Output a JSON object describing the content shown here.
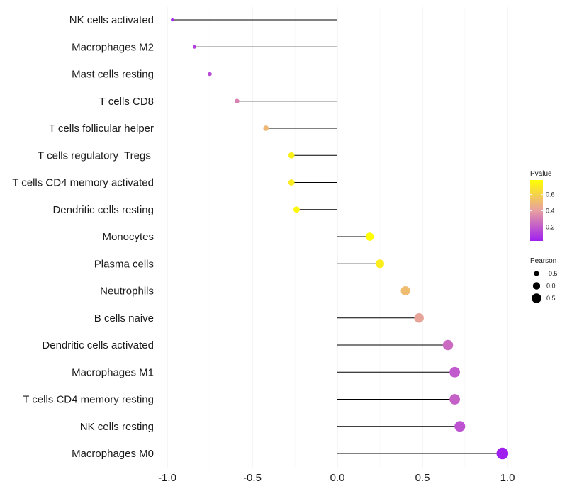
{
  "chart_data": {
    "type": "lollipop",
    "title": "",
    "xlabel": "",
    "ylabel": "",
    "xlim": [
      -1.0,
      1.0
    ],
    "x_ticks": [
      -1.0,
      -0.5,
      0.0,
      0.5,
      1.0
    ],
    "x_tick_labels": [
      "-1.0",
      "-0.5",
      "0.0",
      "0.5",
      "1.0"
    ],
    "x_minor_ticks": [
      -0.75,
      -0.25,
      0.25,
      0.75
    ],
    "points": [
      {
        "label": "NK cells activated",
        "pearson": -0.97,
        "pvalue": 0.05
      },
      {
        "label": "Macrophages M2",
        "pearson": -0.84,
        "pvalue": 0.12
      },
      {
        "label": "Mast cells resting",
        "pearson": -0.75,
        "pvalue": 0.15
      },
      {
        "label": "T cells CD8",
        "pearson": -0.59,
        "pvalue": 0.32
      },
      {
        "label": "T cells follicular helper",
        "pearson": -0.42,
        "pvalue": 0.5
      },
      {
        "label": "T cells regulatory  Tregs ",
        "pearson": -0.27,
        "pvalue": 0.72
      },
      {
        "label": "T cells CD4 memory activated",
        "pearson": -0.27,
        "pvalue": 0.7
      },
      {
        "label": "Dendritic cells resting",
        "pearson": -0.24,
        "pvalue": 0.75
      },
      {
        "label": "Monocytes",
        "pearson": 0.19,
        "pvalue": 0.78
      },
      {
        "label": "Plasma cells",
        "pearson": 0.25,
        "pvalue": 0.71
      },
      {
        "label": "Neutrophils",
        "pearson": 0.4,
        "pvalue": 0.52
      },
      {
        "label": "B cells naive",
        "pearson": 0.48,
        "pvalue": 0.42
      },
      {
        "label": "Dendritic cells activated",
        "pearson": 0.65,
        "pvalue": 0.25
      },
      {
        "label": "Macrophages M1",
        "pearson": 0.69,
        "pvalue": 0.2
      },
      {
        "label": "T cells CD4 memory resting",
        "pearson": 0.69,
        "pvalue": 0.22
      },
      {
        "label": "NK cells resting",
        "pearson": 0.72,
        "pvalue": 0.18
      },
      {
        "label": "Macrophages M0",
        "pearson": 0.97,
        "pvalue": 0.02
      }
    ],
    "color_legend": {
      "title": "Pvalue",
      "range": [
        0.03,
        0.78
      ],
      "ticks": [
        0.6,
        0.4,
        0.2
      ],
      "tick_labels": [
        "0.6",
        "0.4",
        "0.2"
      ],
      "low_color": "#a020f0",
      "mid_color": "#e8a0a0",
      "high_color": "#ffff00"
    },
    "size_legend": {
      "title": "Pearson",
      "values": [
        -0.5,
        0.0,
        0.5
      ],
      "labels": [
        "-0.5",
        "0.0",
        "0.5"
      ]
    }
  }
}
